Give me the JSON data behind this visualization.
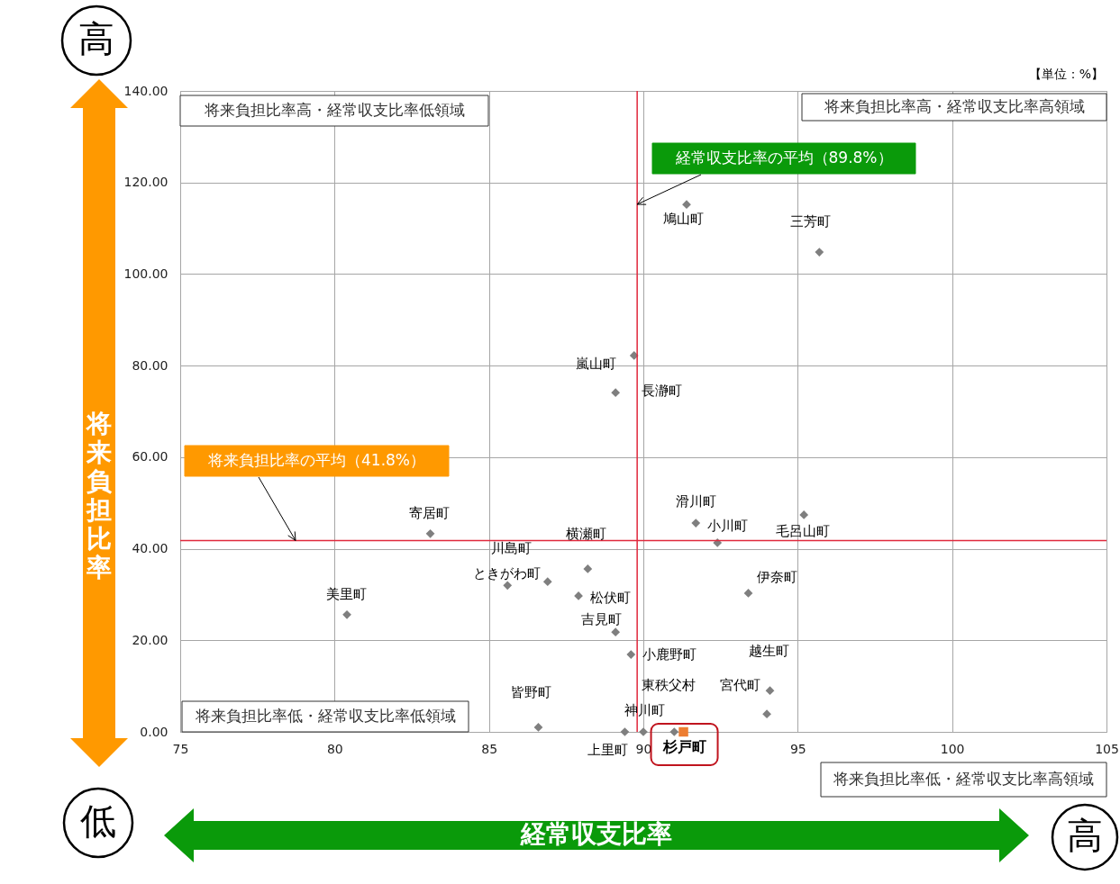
{
  "chart_data": {
    "type": "scatter",
    "xlabel": "経常収支比率",
    "ylabel": "将来負担比率",
    "xlim": [
      75,
      105
    ],
    "xticks": [
      75,
      80,
      85,
      90,
      95,
      100,
      105
    ],
    "ylim": [
      0,
      140
    ],
    "yticks": [
      {
        "value": 0,
        "label": "0.00"
      },
      {
        "value": 20,
        "label": "20.00"
      },
      {
        "value": 40,
        "label": "40.00"
      },
      {
        "value": 60,
        "label": "60.00"
      },
      {
        "value": 80,
        "label": "80.00"
      },
      {
        "value": 100,
        "label": "100.00"
      },
      {
        "value": 120,
        "label": "120.00"
      },
      {
        "value": 140,
        "label": "140.00"
      }
    ],
    "grid": true,
    "marker": "diamond",
    "series": [
      {
        "color": "#7f7f7f",
        "x": [
          91.4,
          95.7,
          89.7,
          89.1,
          83.1,
          91.7,
          92.4,
          95.2,
          88.2,
          86.9,
          85.6,
          89.6,
          87.9,
          80.4,
          89.1,
          93.4,
          94.1,
          94.0,
          86.6,
          89.4,
          90.0,
          91.0
        ],
        "values": [
          115.2,
          104.8,
          82.2,
          74.1,
          43.3,
          45.6,
          41.3,
          47.4,
          35.6,
          32.8,
          32.0,
          16.9,
          29.7,
          25.6,
          21.8,
          30.3,
          9.0,
          3.9,
          1.0,
          0,
          0,
          0
        ]
      },
      {
        "name": "杉戸町",
        "color": "#ed7d31",
        "marker": "square",
        "x": [
          91.3
        ],
        "values": [
          0
        ]
      }
    ],
    "ref_lines": [
      {
        "axis": "x",
        "value": 89.8,
        "label": "経常収支比率の平均（89.8%）",
        "color": "#e0283c"
      },
      {
        "axis": "y",
        "value": 41.8,
        "label": "将来負担比率の平均（41.8%）",
        "color": "#e0283c"
      }
    ],
    "annotations": [
      {
        "text": "鳩山町",
        "x": 91.4,
        "y": 115.2
      },
      {
        "text": "三芳町",
        "x": 95.7,
        "y": 104.8
      },
      {
        "text": "嵐山町",
        "x": 89.7,
        "y": 82.2
      },
      {
        "text": "長瀞町",
        "x": 89.1,
        "y": 74.1
      },
      {
        "text": "寄居町",
        "x": 83.1,
        "y": 43.3
      },
      {
        "text": "滑川町",
        "x": 91.7,
        "y": 45.6
      },
      {
        "text": "小川町",
        "x": 92.4,
        "y": 41.3
      },
      {
        "text": "毛呂山町",
        "x": 95.2,
        "y": 47.4
      },
      {
        "text": "横瀬町",
        "x": 88.2,
        "y": 35.6
      },
      {
        "text": "川島町",
        "x": 86.9,
        "y": 32.8
      },
      {
        "text": "ときがわ町",
        "x": 85.6,
        "y": 32.0
      },
      {
        "text": "小鹿野町",
        "x": 89.6,
        "y": 16.9
      },
      {
        "text": "松伏町",
        "x": 87.9,
        "y": 29.7
      },
      {
        "text": "美里町",
        "x": 80.4,
        "y": 25.6
      },
      {
        "text": "吉見町",
        "x": 89.1,
        "y": 21.8
      },
      {
        "text": "伊奈町",
        "x": 93.4,
        "y": 30.3
      },
      {
        "text": "越生町",
        "x": 94.1,
        "y": 9.0
      },
      {
        "text": "宮代町",
        "x": 94.0,
        "y": 3.9
      },
      {
        "text": "皆野町",
        "x": 86.6,
        "y": 1.0
      },
      {
        "text": "上里町",
        "x": 89.4,
        "y": 0
      },
      {
        "text": "神川町",
        "x": 90.0,
        "y": 0
      },
      {
        "text": "東秩父村",
        "x": 91.0,
        "y": 0
      },
      "【単位：%】",
      "将来負担比率高・経常収支比率低領域",
      "将来負担比率高・経常収支比率高領域",
      "将来負担比率低・経常収支比率低領域",
      "将来負担比率低・経常収支比率高領域",
      "高",
      "低",
      "高"
    ]
  }
}
